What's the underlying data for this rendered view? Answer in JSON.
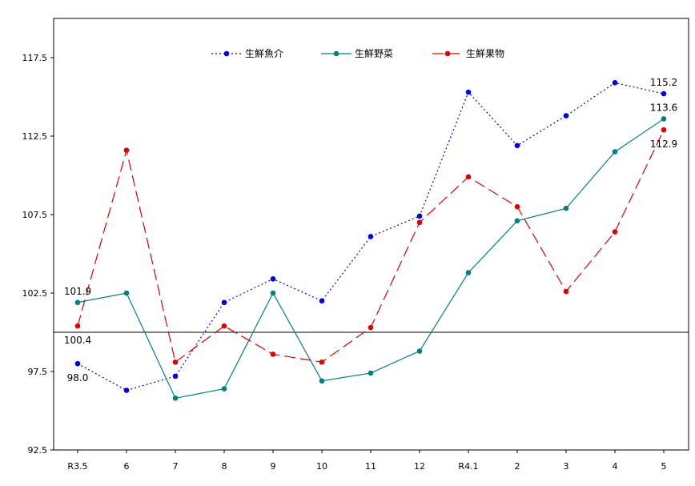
{
  "chart_data": {
    "type": "line",
    "title": "",
    "xlabel": "",
    "ylabel": "",
    "categories": [
      "R3.5",
      "6",
      "7",
      "8",
      "9",
      "10",
      "11",
      "12",
      "R4.1",
      "2",
      "3",
      "4",
      "5"
    ],
    "ylim": [
      92.5,
      120
    ],
    "y_ticks": [
      "92.5",
      "97.5",
      "102.5",
      "107.5",
      "112.5",
      "117.5"
    ],
    "reference_line": 100,
    "grid": false,
    "legend_position": "top-center",
    "series": [
      {
        "name": "生鮮魚介",
        "color": "#0000e0",
        "line_style": "dotted",
        "values": [
          98.0,
          96.3,
          97.2,
          101.9,
          103.4,
          102.0,
          106.1,
          107.4,
          115.3,
          111.9,
          113.8,
          115.9,
          115.2
        ]
      },
      {
        "name": "生鮮野菜",
        "color": "#008080",
        "line_style": "solid",
        "values": [
          101.9,
          102.5,
          95.8,
          96.4,
          102.5,
          96.9,
          97.4,
          98.8,
          103.8,
          107.1,
          107.9,
          111.5,
          113.6
        ]
      },
      {
        "name": "生鮮果物",
        "color": "#e00000",
        "line_style": "dashed",
        "values": [
          100.4,
          111.6,
          98.1,
          100.4,
          98.6,
          98.1,
          100.3,
          107.0,
          109.9,
          108.0,
          102.6,
          106.4,
          112.9
        ]
      }
    ],
    "data_labels": [
      {
        "series": 0,
        "index": 0,
        "text": "98.0",
        "placement": "below"
      },
      {
        "series": 1,
        "index": 0,
        "text": "101.9",
        "placement": "above"
      },
      {
        "series": 2,
        "index": 0,
        "text": "100.4",
        "placement": "below"
      },
      {
        "series": 0,
        "index": 12,
        "text": "115.2",
        "placement": "above"
      },
      {
        "series": 1,
        "index": 12,
        "text": "113.6",
        "placement": "above"
      },
      {
        "series": 2,
        "index": 12,
        "text": "112.9",
        "placement": "below"
      }
    ]
  }
}
